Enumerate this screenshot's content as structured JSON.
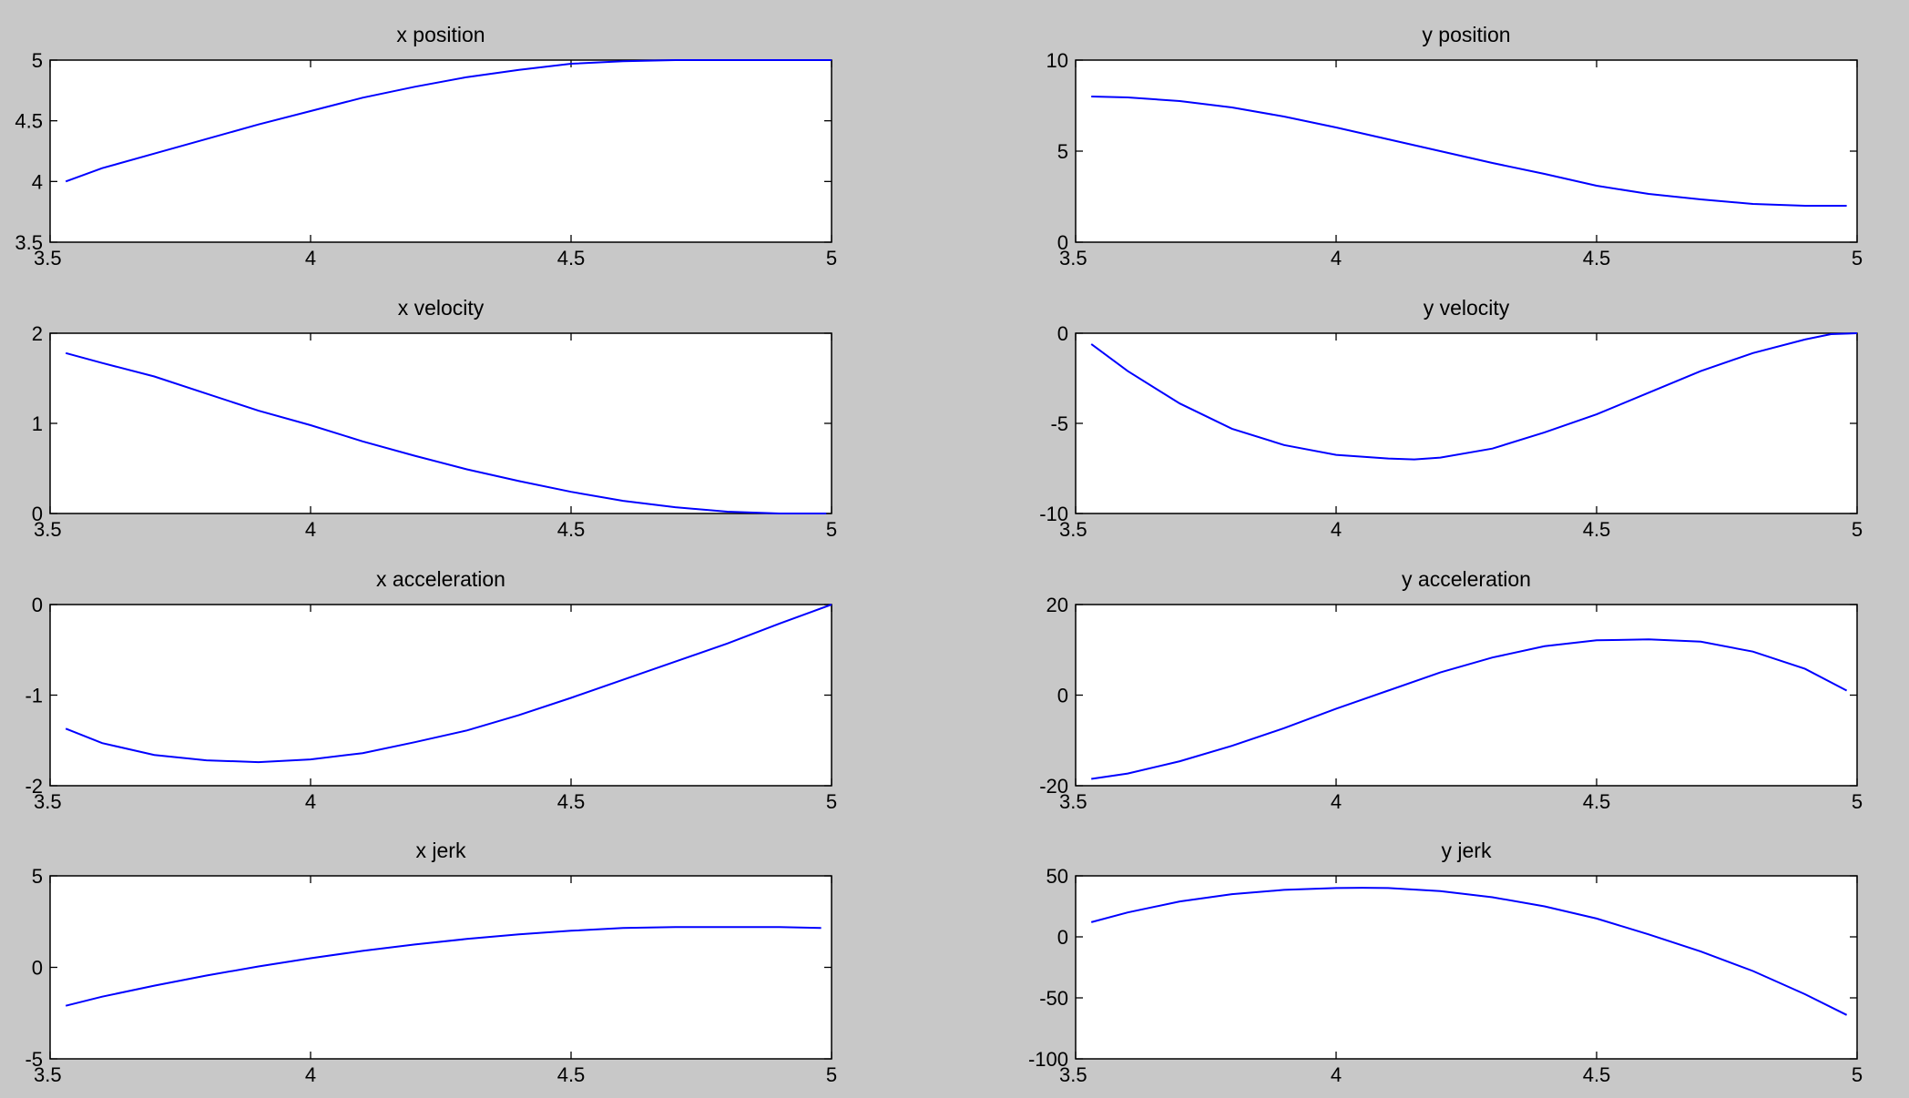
{
  "figure": {
    "background": "#c8c8c8",
    "line_color": "#0000ff"
  },
  "chart_data": [
    {
      "type": "line",
      "title": "x position",
      "xlabel": "",
      "ylabel": "",
      "xlim": [
        3.5,
        5
      ],
      "ylim": [
        3.5,
        5
      ],
      "xticks": [
        "3.5",
        "4",
        "4.5",
        "5"
      ],
      "yticks": [
        "3.5",
        "4",
        "4.5",
        "5"
      ],
      "grid": false,
      "series": [
        {
          "x": [
            3.53,
            3.6,
            3.7,
            3.8,
            3.9,
            4.0,
            4.1,
            4.2,
            4.3,
            4.4,
            4.5,
            4.6,
            4.7,
            4.8,
            4.9,
            5.0
          ],
          "values": [
            4.0,
            4.11,
            4.23,
            4.35,
            4.47,
            4.58,
            4.69,
            4.78,
            4.86,
            4.92,
            4.97,
            4.99,
            5.0,
            5.0,
            5.0,
            5.0
          ]
        }
      ]
    },
    {
      "type": "line",
      "title": "y position",
      "xlabel": "",
      "ylabel": "",
      "xlim": [
        3.5,
        5
      ],
      "ylim": [
        0,
        10
      ],
      "xticks": [
        "3.5",
        "4",
        "4.5",
        "5"
      ],
      "yticks": [
        "0",
        "5",
        "10"
      ],
      "grid": false,
      "series": [
        {
          "x": [
            3.53,
            3.6,
            3.7,
            3.8,
            3.9,
            4.0,
            4.1,
            4.2,
            4.3,
            4.4,
            4.5,
            4.6,
            4.7,
            4.8,
            4.9,
            4.98
          ],
          "values": [
            8.0,
            7.95,
            7.75,
            7.4,
            6.9,
            6.3,
            5.65,
            5.0,
            4.35,
            3.75,
            3.1,
            2.65,
            2.35,
            2.1,
            2.0,
            2.0
          ]
        }
      ]
    },
    {
      "type": "line",
      "title": "x velocity",
      "xlabel": "",
      "ylabel": "",
      "xlim": [
        3.5,
        5
      ],
      "ylim": [
        0,
        2
      ],
      "xticks": [
        "3.5",
        "4",
        "4.5",
        "5"
      ],
      "yticks": [
        "0",
        "1",
        "2"
      ],
      "grid": false,
      "series": [
        {
          "x": [
            3.53,
            3.6,
            3.7,
            3.8,
            3.9,
            4.0,
            4.1,
            4.2,
            4.3,
            4.4,
            4.5,
            4.6,
            4.7,
            4.8,
            4.9,
            4.99
          ],
          "values": [
            1.78,
            1.67,
            1.52,
            1.33,
            1.14,
            0.98,
            0.8,
            0.64,
            0.49,
            0.36,
            0.24,
            0.14,
            0.07,
            0.02,
            0.0,
            0.0
          ]
        }
      ]
    },
    {
      "type": "line",
      "title": "y velocity",
      "xlabel": "",
      "ylabel": "",
      "xlim": [
        3.5,
        5
      ],
      "ylim": [
        -10,
        0
      ],
      "xticks": [
        "3.5",
        "4",
        "4.5",
        "5"
      ],
      "yticks": [
        "-10",
        "-5",
        "0"
      ],
      "grid": false,
      "series": [
        {
          "x": [
            3.53,
            3.6,
            3.7,
            3.8,
            3.9,
            4.0,
            4.1,
            4.15,
            4.2,
            4.3,
            4.4,
            4.5,
            4.6,
            4.7,
            4.8,
            4.9,
            4.95,
            5.0
          ],
          "values": [
            -0.6,
            -2.1,
            -3.9,
            -5.3,
            -6.2,
            -6.75,
            -6.95,
            -7.0,
            -6.9,
            -6.4,
            -5.5,
            -4.5,
            -3.3,
            -2.1,
            -1.1,
            -0.35,
            -0.05,
            0.0
          ]
        }
      ]
    },
    {
      "type": "line",
      "title": "x acceleration",
      "xlabel": "",
      "ylabel": "",
      "xlim": [
        3.5,
        5
      ],
      "ylim": [
        -2,
        0
      ],
      "xticks": [
        "3.5",
        "4",
        "4.5",
        "5"
      ],
      "yticks": [
        "-2",
        "-1",
        "0"
      ],
      "grid": false,
      "series": [
        {
          "x": [
            3.53,
            3.6,
            3.7,
            3.8,
            3.9,
            4.0,
            4.1,
            4.2,
            4.3,
            4.4,
            4.5,
            4.6,
            4.7,
            4.8,
            4.9,
            5.0
          ],
          "values": [
            -1.37,
            -1.53,
            -1.66,
            -1.72,
            -1.74,
            -1.71,
            -1.64,
            -1.52,
            -1.39,
            -1.22,
            -1.03,
            -0.83,
            -0.63,
            -0.43,
            -0.21,
            0.0
          ]
        }
      ]
    },
    {
      "type": "line",
      "title": "y acceleration",
      "xlabel": "",
      "ylabel": "",
      "xlim": [
        3.5,
        5
      ],
      "ylim": [
        -20,
        20
      ],
      "xticks": [
        "3.5",
        "4",
        "4.5",
        "5"
      ],
      "yticks": [
        "-20",
        "0",
        "20"
      ],
      "grid": false,
      "series": [
        {
          "x": [
            3.53,
            3.6,
            3.7,
            3.8,
            3.9,
            4.0,
            4.1,
            4.2,
            4.3,
            4.4,
            4.5,
            4.6,
            4.7,
            4.8,
            4.9,
            4.98
          ],
          "values": [
            -18.5,
            -17.3,
            -14.6,
            -11.2,
            -7.3,
            -3.0,
            1.0,
            5.0,
            8.3,
            10.8,
            12.1,
            12.3,
            11.8,
            9.6,
            5.8,
            1.0
          ]
        }
      ]
    },
    {
      "type": "line",
      "title": "x jerk",
      "xlabel": "",
      "ylabel": "",
      "xlim": [
        3.5,
        5
      ],
      "ylim": [
        -5,
        5
      ],
      "xticks": [
        "3.5",
        "4",
        "4.5",
        "5"
      ],
      "yticks": [
        "-5",
        "0",
        "5"
      ],
      "grid": false,
      "series": [
        {
          "x": [
            3.53,
            3.6,
            3.7,
            3.8,
            3.9,
            4.0,
            4.1,
            4.2,
            4.3,
            4.4,
            4.5,
            4.6,
            4.7,
            4.8,
            4.9,
            4.98
          ],
          "values": [
            -2.1,
            -1.6,
            -1.0,
            -0.45,
            0.05,
            0.5,
            0.9,
            1.25,
            1.55,
            1.8,
            2.0,
            2.15,
            2.2,
            2.2,
            2.2,
            2.15
          ]
        }
      ]
    },
    {
      "type": "line",
      "title": "y jerk",
      "xlabel": "",
      "ylabel": "",
      "xlim": [
        3.5,
        5
      ],
      "ylim": [
        -100,
        50
      ],
      "xticks": [
        "3.5",
        "4",
        "4.5",
        "5"
      ],
      "yticks": [
        "-100",
        "-50",
        "0",
        "50"
      ],
      "grid": false,
      "series": [
        {
          "x": [
            3.53,
            3.6,
            3.7,
            3.8,
            3.9,
            4.0,
            4.05,
            4.1,
            4.2,
            4.3,
            4.4,
            4.5,
            4.6,
            4.7,
            4.8,
            4.9,
            4.98
          ],
          "values": [
            12,
            20,
            29,
            35,
            38.5,
            40,
            40.2,
            40,
            37.5,
            32.5,
            25,
            15,
            2,
            -12,
            -28,
            -47,
            -64
          ]
        }
      ]
    }
  ]
}
